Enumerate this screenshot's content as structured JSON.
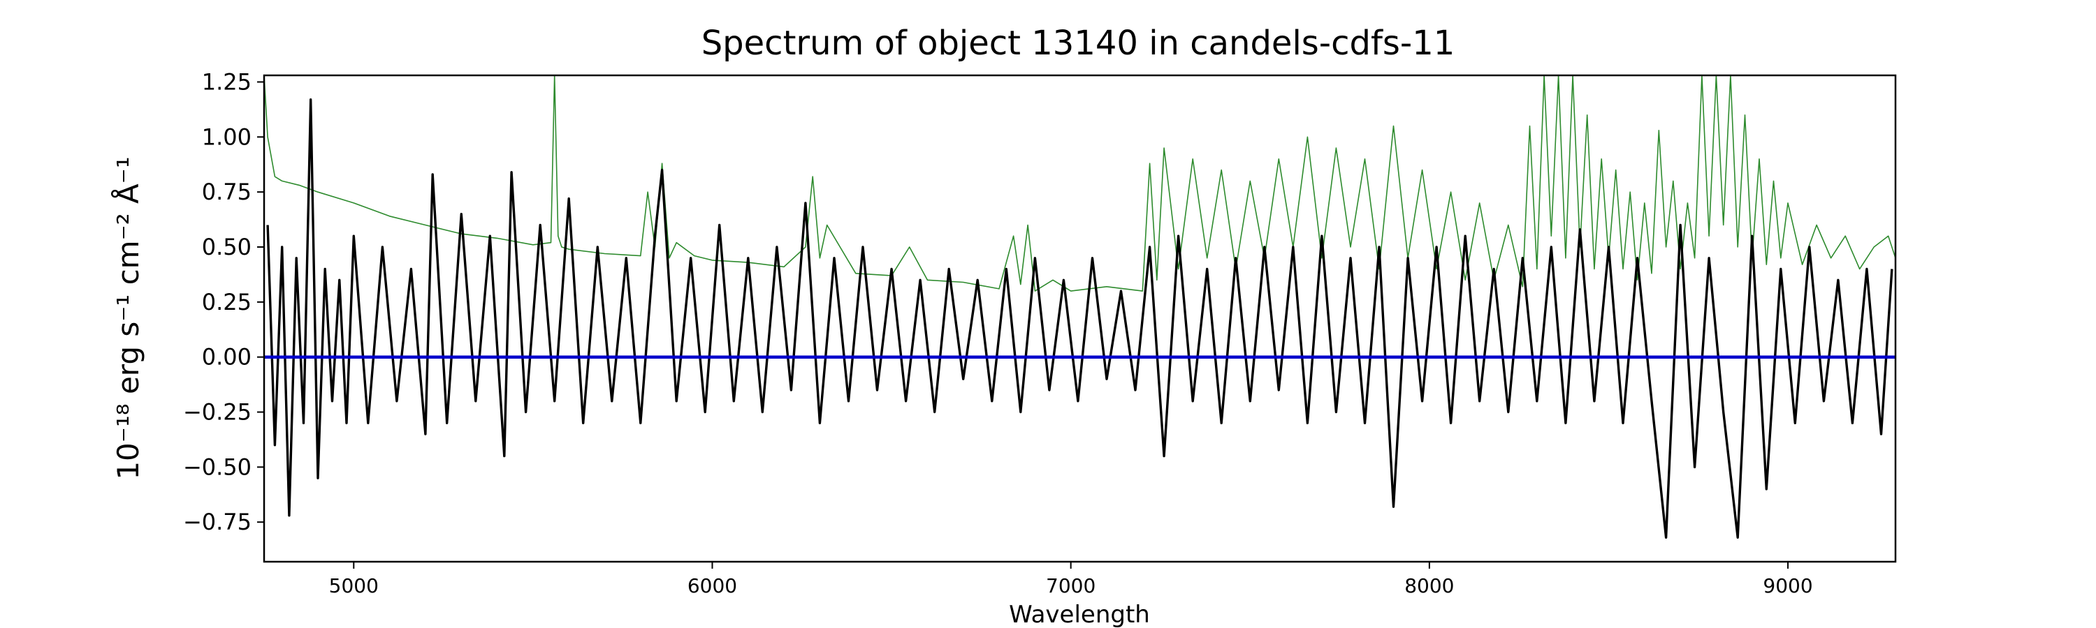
{
  "chart_data": {
    "type": "line",
    "title": "Spectrum of object 13140 in candels-cdfs-11",
    "xlabel": "Wavelength",
    "ylabel": "10⁻¹⁸ erg s⁻¹ cm⁻² Å⁻¹",
    "xlim": [
      4750,
      9300
    ],
    "ylim": [
      -0.93,
      1.28
    ],
    "xticks": [
      5000,
      6000,
      7000,
      8000,
      9000
    ],
    "yticks": [
      -0.75,
      -0.5,
      -0.25,
      0.0,
      0.25,
      0.5,
      0.75,
      1.0,
      1.25
    ],
    "xtick_labels": [
      "5000",
      "6000",
      "7000",
      "8000",
      "9000"
    ],
    "ytick_labels": [
      "−0.75",
      "−0.50",
      "−0.25",
      "0.00",
      "0.25",
      "0.50",
      "0.75",
      "1.00",
      "1.25"
    ],
    "grid": false,
    "legend": "none",
    "series": [
      {
        "key": "flux",
        "color": "#000000",
        "x": [
          4760,
          4780,
          4800,
          4820,
          4840,
          4860,
          4880,
          4900,
          4920,
          4940,
          4960,
          4980,
          5000,
          5040,
          5080,
          5120,
          5160,
          5200,
          5220,
          5260,
          5300,
          5340,
          5380,
          5420,
          5440,
          5480,
          5520,
          5560,
          5600,
          5640,
          5680,
          5720,
          5760,
          5800,
          5840,
          5860,
          5900,
          5940,
          5980,
          6020,
          6060,
          6100,
          6140,
          6180,
          6220,
          6260,
          6300,
          6340,
          6380,
          6420,
          6460,
          6500,
          6540,
          6580,
          6620,
          6660,
          6700,
          6740,
          6780,
          6820,
          6860,
          6900,
          6940,
          6980,
          7020,
          7060,
          7100,
          7140,
          7180,
          7220,
          7260,
          7300,
          7340,
          7380,
          7420,
          7460,
          7500,
          7540,
          7580,
          7620,
          7660,
          7700,
          7740,
          7780,
          7820,
          7860,
          7900,
          7940,
          7980,
          8020,
          8060,
          8100,
          8140,
          8180,
          8220,
          8260,
          8300,
          8340,
          8380,
          8420,
          8460,
          8500,
          8540,
          8580,
          8620,
          8660,
          8700,
          8740,
          8780,
          8820,
          8860,
          8900,
          8940,
          8980,
          9020,
          9060,
          9100,
          9140,
          9180,
          9220,
          9260,
          9290
        ],
        "y": [
          0.6,
          -0.4,
          0.5,
          -0.72,
          0.45,
          -0.3,
          1.17,
          -0.55,
          0.4,
          -0.2,
          0.35,
          -0.3,
          0.55,
          -0.3,
          0.5,
          -0.2,
          0.4,
          -0.35,
          0.83,
          -0.3,
          0.65,
          -0.2,
          0.55,
          -0.45,
          0.84,
          -0.25,
          0.6,
          -0.2,
          0.72,
          -0.3,
          0.5,
          -0.2,
          0.45,
          -0.3,
          0.55,
          0.85,
          -0.2,
          0.45,
          -0.25,
          0.6,
          -0.2,
          0.45,
          -0.25,
          0.5,
          -0.15,
          0.7,
          -0.3,
          0.45,
          -0.2,
          0.5,
          -0.15,
          0.4,
          -0.2,
          0.35,
          -0.25,
          0.4,
          -0.1,
          0.35,
          -0.2,
          0.4,
          -0.25,
          0.45,
          -0.15,
          0.35,
          -0.2,
          0.45,
          -0.1,
          0.3,
          -0.15,
          0.5,
          -0.45,
          0.55,
          -0.2,
          0.4,
          -0.3,
          0.45,
          -0.2,
          0.5,
          -0.15,
          0.5,
          -0.3,
          0.55,
          -0.25,
          0.45,
          -0.3,
          0.5,
          -0.68,
          0.45,
          -0.2,
          0.5,
          -0.3,
          0.55,
          -0.2,
          0.4,
          -0.25,
          0.45,
          -0.2,
          0.5,
          -0.3,
          0.58,
          -0.2,
          0.5,
          -0.3,
          0.45,
          -0.2,
          -0.82,
          0.6,
          -0.5,
          0.45,
          -0.25,
          -0.82,
          0.55,
          -0.6,
          0.4,
          -0.3,
          0.5,
          -0.2,
          0.35,
          -0.3,
          0.4,
          -0.35,
          0.4
        ]
      },
      {
        "key": "error",
        "color": "#2e8b2e",
        "x": [
          4750,
          4760,
          4780,
          4800,
          4850,
          4900,
          5000,
          5100,
          5200,
          5300,
          5400,
          5500,
          5550,
          5560,
          5570,
          5580,
          5600,
          5700,
          5800,
          5820,
          5840,
          5860,
          5880,
          5900,
          5950,
          6000,
          6100,
          6200,
          6260,
          6280,
          6300,
          6320,
          6400,
          6500,
          6550,
          6600,
          6700,
          6800,
          6840,
          6860,
          6880,
          6900,
          6950,
          7000,
          7100,
          7200,
          7220,
          7240,
          7260,
          7300,
          7340,
          7380,
          7420,
          7460,
          7500,
          7540,
          7580,
          7620,
          7660,
          7700,
          7740,
          7780,
          7820,
          7860,
          7900,
          7940,
          7980,
          8020,
          8060,
          8100,
          8140,
          8180,
          8220,
          8260,
          8280,
          8300,
          8320,
          8340,
          8360,
          8380,
          8400,
          8420,
          8440,
          8460,
          8480,
          8500,
          8520,
          8540,
          8560,
          8580,
          8600,
          8620,
          8640,
          8660,
          8680,
          8700,
          8720,
          8740,
          8760,
          8780,
          8800,
          8820,
          8840,
          8860,
          8880,
          8900,
          8920,
          8940,
          8960,
          8980,
          9000,
          9040,
          9080,
          9120,
          9160,
          9200,
          9240,
          9280,
          9300
        ],
        "y": [
          1.28,
          1.0,
          0.82,
          0.8,
          0.78,
          0.75,
          0.7,
          0.64,
          0.6,
          0.56,
          0.54,
          0.51,
          0.52,
          1.28,
          0.55,
          0.5,
          0.49,
          0.47,
          0.46,
          0.75,
          0.5,
          0.88,
          0.45,
          0.52,
          0.46,
          0.44,
          0.43,
          0.41,
          0.5,
          0.82,
          0.45,
          0.6,
          0.38,
          0.37,
          0.5,
          0.35,
          0.34,
          0.31,
          0.55,
          0.33,
          0.6,
          0.3,
          0.35,
          0.3,
          0.32,
          0.3,
          0.88,
          0.35,
          0.95,
          0.4,
          0.9,
          0.45,
          0.85,
          0.4,
          0.8,
          0.45,
          0.9,
          0.5,
          1.0,
          0.45,
          0.95,
          0.5,
          0.9,
          0.4,
          1.05,
          0.45,
          0.85,
          0.4,
          0.75,
          0.35,
          0.7,
          0.35,
          0.6,
          0.32,
          1.05,
          0.4,
          1.28,
          0.55,
          1.28,
          0.45,
          1.28,
          0.5,
          1.1,
          0.4,
          0.9,
          0.45,
          0.85,
          0.4,
          0.75,
          0.35,
          0.7,
          0.38,
          1.03,
          0.5,
          0.8,
          0.4,
          0.7,
          0.45,
          1.28,
          0.55,
          1.28,
          0.6,
          1.28,
          0.5,
          1.1,
          0.45,
          0.9,
          0.42,
          0.8,
          0.45,
          0.7,
          0.42,
          0.6,
          0.45,
          0.55,
          0.4,
          0.5,
          0.55,
          0.45
        ]
      },
      {
        "key": "zero",
        "color": "#0000cc",
        "x": [
          4750,
          9300
        ],
        "y": [
          0,
          0
        ]
      }
    ]
  }
}
